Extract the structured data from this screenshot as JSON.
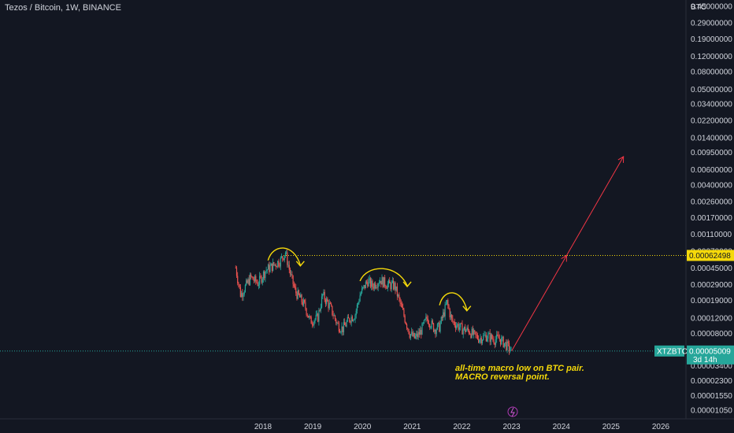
{
  "header": {
    "title": "Tezos / Bitcoin, 1W, BINANCE"
  },
  "chart_data": {
    "type": "candlestick",
    "symbol": "XTZBTC",
    "y_unit": "BTC",
    "y_scale": "log",
    "y_ticks": [
      "0.45000000",
      "0.29000000",
      "0.19000000",
      "0.12000000",
      "0.08000000",
      "0.05000000",
      "0.03400000",
      "0.02200000",
      "0.01400000",
      "0.00950000",
      "0.00600000",
      "0.00400000",
      "0.00260000",
      "0.00170000",
      "0.00110000",
      "0.00070000",
      "0.00045000",
      "0.00029000",
      "0.00019000",
      "0.00012000",
      "0.00008000",
      "0.00005000",
      "0.00003400",
      "0.00002300",
      "0.00001550",
      "0.00001050"
    ],
    "x_ticks": [
      "2018",
      "2019",
      "2020",
      "2021",
      "2022",
      "2023",
      "2024",
      "2025",
      "2026"
    ],
    "current_price": {
      "label": "XTZBTC",
      "value": "0.00005009",
      "countdown": "3d 14h"
    },
    "resistance_level": {
      "value": "0.00062498",
      "color": "#f5d90a"
    },
    "path": [
      [
        2017.45,
        0.00045
      ],
      [
        2017.55,
        0.00022
      ],
      [
        2017.75,
        0.00035
      ],
      [
        2017.9,
        0.0003
      ],
      [
        2018.05,
        0.00042
      ],
      [
        2018.25,
        0.0005
      ],
      [
        2018.35,
        0.00055
      ],
      [
        2018.45,
        0.00068
      ],
      [
        2018.55,
        0.00038
      ],
      [
        2018.65,
        0.00024
      ],
      [
        2018.75,
        0.0002
      ],
      [
        2018.85,
        0.00016
      ],
      [
        2018.95,
        0.00011
      ],
      [
        2019.1,
        0.00012
      ],
      [
        2019.2,
        0.00022
      ],
      [
        2019.35,
        0.00016
      ],
      [
        2019.5,
        0.0001
      ],
      [
        2019.6,
        9e-05
      ],
      [
        2019.75,
        0.00012
      ],
      [
        2019.85,
        0.00013
      ],
      [
        2019.95,
        0.00022
      ],
      [
        2020.1,
        0.00032
      ],
      [
        2020.2,
        0.00028
      ],
      [
        2020.35,
        0.00033
      ],
      [
        2020.5,
        0.00029
      ],
      [
        2020.65,
        0.00028
      ],
      [
        2020.75,
        0.00018
      ],
      [
        2020.85,
        0.00012
      ],
      [
        2020.95,
        8e-05
      ],
      [
        2021.05,
        7e-05
      ],
      [
        2021.15,
        8e-05
      ],
      [
        2021.3,
        0.00012
      ],
      [
        2021.45,
        9e-05
      ],
      [
        2021.55,
        9.5e-05
      ],
      [
        2021.7,
        0.00018
      ],
      [
        2021.8,
        0.00011
      ],
      [
        2021.9,
        0.0001
      ],
      [
        2022.0,
        9e-05
      ],
      [
        2022.15,
        8.5e-05
      ],
      [
        2022.25,
        7.5e-05
      ],
      [
        2022.35,
        7e-05
      ],
      [
        2022.5,
        7.5e-05
      ],
      [
        2022.65,
        6.8e-05
      ],
      [
        2022.75,
        7e-05
      ],
      [
        2022.9,
        5.8e-05
      ],
      [
        2023.0,
        5e-05
      ]
    ],
    "projection": {
      "from": [
        2023.0,
        5e-05
      ],
      "to": [
        2025.25,
        0.0085
      ]
    },
    "arrows": [
      {
        "x": [
          2018.1,
          2018.75
        ],
        "y_base": 0.00062
      },
      {
        "x": [
          2019.95,
          2020.9
        ],
        "y_base": 0.00036
      },
      {
        "x": [
          2021.55,
          2022.1
        ],
        "y_base": 0.00019
      }
    ],
    "colors": {
      "up": "#26a69a",
      "down": "#ef5350",
      "projection": "#f23645",
      "arrow": "#f5d90a",
      "price_line": "#26a69a"
    },
    "annotations": [
      "all-time macro low on BTC pair.",
      "MACRO reversal point."
    ],
    "x_range": [
      2017.0,
      2026.3
    ],
    "y_range": [
      9.8e-06,
      0.56
    ]
  }
}
